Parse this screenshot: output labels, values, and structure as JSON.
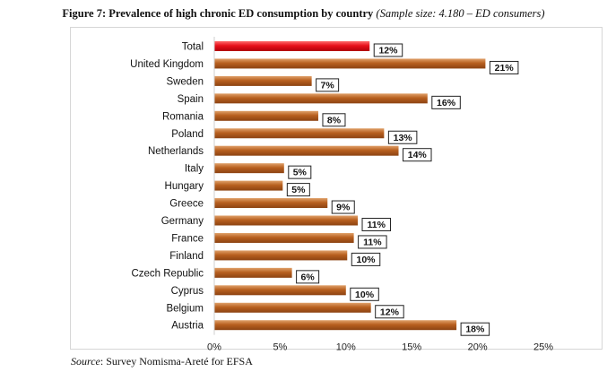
{
  "title": {
    "main": "Figure 7: Prevalence of high chronic ED consumption by country",
    "subtitle": "(Sample size: 4.180 – ED consumers)"
  },
  "source": {
    "label": "Source",
    "text": ": Survey Nomisma-Areté for EFSA"
  },
  "colors": {
    "highlight": "#e8101a",
    "bar": "#b8601f",
    "label_border": "#222222"
  },
  "chart_data": {
    "type": "bar",
    "orientation": "horizontal",
    "categories": [
      "Total",
      "United Kingdom",
      "Sweden",
      "Spain",
      "Romania",
      "Poland",
      "Netherlands",
      "Italy",
      "Hungary",
      "Greece",
      "Germany",
      "France",
      "Finland",
      "Czech Republic",
      "Cyprus",
      "Belgium",
      "Austria"
    ],
    "values": [
      11.8,
      20.6,
      7.4,
      16.2,
      7.9,
      12.9,
      14.0,
      5.3,
      5.2,
      8.6,
      10.9,
      10.6,
      10.1,
      5.9,
      10.0,
      11.9,
      18.4
    ],
    "value_labels": [
      "12%",
      "21%",
      "7%",
      "16%",
      "8%",
      "13%",
      "14%",
      "5%",
      "5%",
      "9%",
      "11%",
      "11%",
      "10%",
      "6%",
      "10%",
      "12%",
      "18%"
    ],
    "highlight_category": "Total",
    "xlim": [
      0,
      25
    ],
    "xticks": [
      "0%",
      "5%",
      "10%",
      "15%",
      "20%",
      "25%"
    ],
    "grid": false,
    "legend": "none"
  }
}
